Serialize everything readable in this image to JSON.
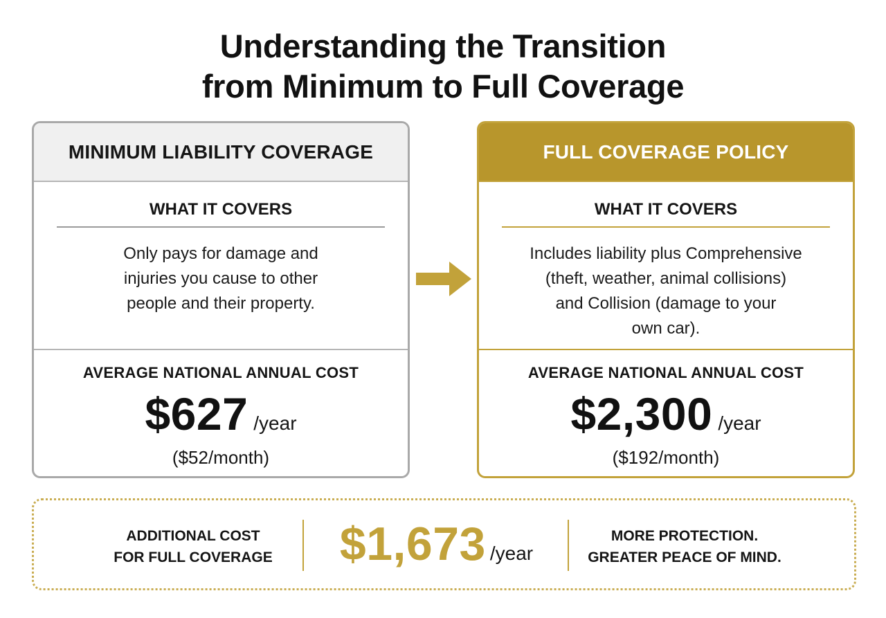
{
  "title": {
    "line1": "Understanding the Transition",
    "line2": "from Minimum to Full Coverage"
  },
  "minimum": {
    "header": "MINIMUM LIABILITY COVERAGE",
    "covers_title": "WHAT IT COVERS",
    "covers_lines": [
      "Only pays for damage and",
      "injuries you cause to other",
      "people and their property."
    ],
    "cost_label": "AVERAGE NATIONAL ANNUAL COST",
    "annual_cost": "$627",
    "unit": "/year",
    "monthly": "($52/month)"
  },
  "full": {
    "header": "FULL COVERAGE POLICY",
    "covers_title": "WHAT IT COVERS",
    "covers_lines": [
      "Includes liability plus Comprehensive",
      "(theft, weather, animal collisions)",
      "and Collision (damage to your",
      "own car)."
    ],
    "cost_label": "AVERAGE NATIONAL ANNUAL COST",
    "annual_cost": "$2,300",
    "unit": "/year",
    "monthly": "($192/month)"
  },
  "summary": {
    "label_line1": "ADDITIONAL COST",
    "label_line2": "FOR FULL COVERAGE",
    "amount": "$1,673",
    "unit": "/year",
    "tagline_line1": "MORE PROTECTION.",
    "tagline_line2": "GREATER PEACE OF MIND."
  },
  "colors": {
    "gold": "#b8962c",
    "gold_light": "#c2a23a",
    "gray_border": "#a9a9a9",
    "header_gray": "#f0f0f0",
    "text": "#111111"
  },
  "icons": {
    "transition_arrow": "right-arrow-icon"
  }
}
